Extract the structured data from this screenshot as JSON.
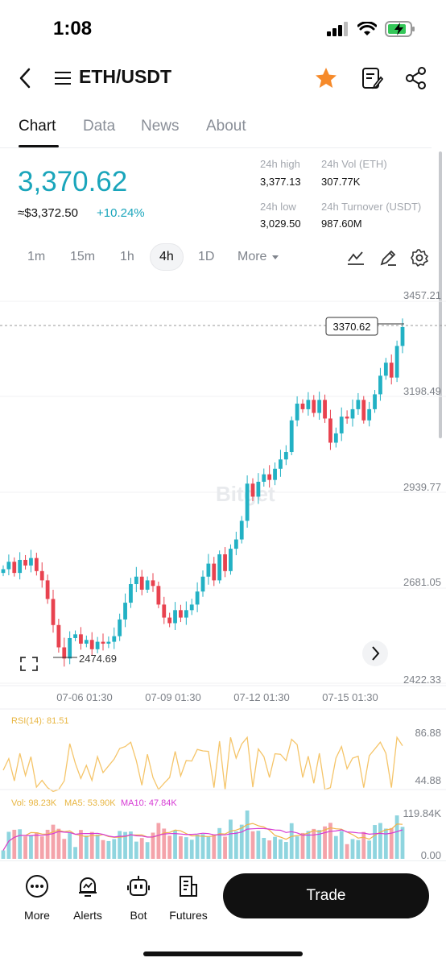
{
  "status": {
    "time": "1:08"
  },
  "nav": {
    "title": "ETH/USDT"
  },
  "tabs": [
    {
      "label": "Chart",
      "active": true
    },
    {
      "label": "Data",
      "active": false
    },
    {
      "label": "News",
      "active": false
    },
    {
      "label": "About",
      "active": false
    }
  ],
  "price": {
    "last": "3,370.62",
    "fiat": "≈$3,372.50",
    "change": "+10.24%"
  },
  "stats": {
    "high_label": "24h high",
    "high_value": "3,377.13",
    "vol_label": "24h Vol (ETH)",
    "vol_value": "307.77K",
    "low_label": "24h low",
    "low_value": "3,029.50",
    "turnover_label": "24h Turnover (USDT)",
    "turnover_value": "987.60M"
  },
  "timeframes": [
    {
      "label": "1m",
      "active": false
    },
    {
      "label": "15m",
      "active": false
    },
    {
      "label": "1h",
      "active": false
    },
    {
      "label": "4h",
      "active": true
    },
    {
      "label": "1D",
      "active": false
    },
    {
      "label": "More",
      "active": false
    }
  ],
  "colors": {
    "up": "#22b1c4",
    "down": "#e8424f",
    "accent": "#1aa5bb",
    "star": "#f68a2a",
    "rsi": "#f5c56a",
    "ma5": "#f0b34a",
    "ma10": "#d63ad4"
  },
  "chart_data": {
    "type": "candlestick",
    "price_axis": [
      "3457.21",
      "3198.49",
      "2939.77",
      "2681.05",
      "2422.33"
    ],
    "time_axis": [
      "07-06 01:30",
      "07-09 01:30",
      "07-12 01:30",
      "07-15 01:30"
    ],
    "current_price_label": "3370.62",
    "min_label": "2474.69",
    "watermark": "Bitget",
    "ylim": [
      2422.33,
      3457.21
    ],
    "closes": [
      2720,
      2740,
      2710,
      2745,
      2730,
      2750,
      2715,
      2690,
      2640,
      2570,
      2510,
      2480,
      2535,
      2545,
      2520,
      2530,
      2505,
      2525,
      2520,
      2525,
      2540,
      2585,
      2630,
      2680,
      2700,
      2665,
      2690,
      2675,
      2625,
      2590,
      2575,
      2610,
      2590,
      2610,
      2625,
      2660,
      2700,
      2735,
      2690,
      2760,
      2715,
      2775,
      2800,
      2850,
      2950,
      2915,
      2955,
      2975,
      2960,
      2990,
      3015,
      3035,
      3120,
      3165,
      3150,
      3175,
      3140,
      3175,
      3125,
      3060,
      3085,
      3130,
      3125,
      3150,
      3175,
      3120,
      3150,
      3190,
      3240,
      3275,
      3235,
      3320,
      3370.62
    ],
    "rsi": {
      "label": "RSI(14): 81.51",
      "axis": [
        "86.88",
        "44.88"
      ]
    },
    "volume": {
      "label_vol": "Vol: 98.23K",
      "label_ma5": "MA5: 53.90K",
      "label_ma10": "MA10: 47.84K",
      "axis": [
        "119.84K",
        "0.00"
      ]
    }
  },
  "bottom": {
    "more": "More",
    "alerts": "Alerts",
    "bot": "Bot",
    "futures": "Futures",
    "trade": "Trade"
  }
}
